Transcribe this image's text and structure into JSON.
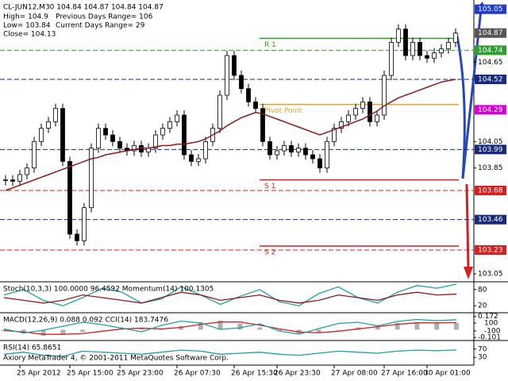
{
  "header": {
    "symbol_line": "CL-JUN12,M30  104.84 104.87 104.84 104.87",
    "info": [
      "High= 104.9",
      "Previous Days Range= 106",
      "Low= 103.84",
      "Current Days Range= 29",
      "Close= 104.13"
    ]
  },
  "footer": "Axiory MetaTrader 4, © 2001-2011 MetaQuotes Software Corp.",
  "chart_data": [
    {
      "type": "candlestick",
      "x": [
        null,
        null,
        "25 Apr 2012",
        null,
        null,
        null,
        null,
        null,
        null,
        "25 Apr 15:00",
        null,
        null,
        null,
        null,
        null,
        null,
        "25 Apr 23:00",
        null,
        null,
        null,
        null,
        null,
        null,
        null,
        "26 Apr 07:30",
        null,
        null,
        null,
        null,
        null,
        null,
        null,
        "26 Apr 15:30",
        null,
        null,
        null,
        null,
        null,
        "26 Apr 23:30",
        null,
        null,
        null,
        null,
        null,
        null,
        null,
        "27 Apr 08:00",
        null,
        null,
        null,
        null,
        null,
        null,
        "27 Apr 16:00",
        null,
        null,
        null,
        null,
        null,
        "30 Apr 01:00",
        null,
        null,
        null,
        null
      ],
      "close": [
        103.76,
        103.75,
        103.8,
        103.85,
        104.05,
        104.15,
        104.2,
        104.3,
        103.9,
        103.35,
        103.3,
        103.55,
        104.0,
        104.15,
        104.1,
        104.05,
        104.0,
        103.98,
        104.02,
        103.97,
        104.0,
        104.1,
        104.15,
        104.2,
        104.25,
        103.95,
        103.9,
        103.92,
        104.05,
        104.15,
        104.4,
        104.7,
        104.55,
        104.45,
        104.35,
        104.3,
        104.05,
        103.95,
        103.98,
        104.02,
        103.97,
        104.0,
        103.95,
        103.92,
        103.85,
        104.05,
        104.15,
        104.2,
        104.25,
        104.3,
        104.35,
        104.2,
        104.25,
        104.55,
        104.8,
        104.9,
        104.7,
        104.8,
        104.7,
        104.68,
        104.72,
        104.75,
        104.8,
        104.87
      ],
      "ma": {
        "color": "#8b1a1a",
        "values": [
          103.68,
          103.7,
          103.72,
          103.74,
          103.76,
          103.78,
          103.8,
          103.82,
          103.84,
          103.86,
          103.88,
          103.9,
          103.92,
          103.93,
          103.95,
          103.96,
          103.97,
          103.98,
          103.99,
          104.0,
          104.0,
          104.01,
          104.02,
          104.02,
          104.03,
          104.03,
          104.04,
          104.05,
          104.07,
          104.1,
          104.13,
          104.17,
          104.2,
          104.23,
          104.25,
          104.27,
          104.26,
          104.24,
          104.22,
          104.2,
          104.18,
          104.16,
          104.14,
          104.12,
          104.1,
          104.12,
          104.14,
          104.16,
          104.18,
          104.2,
          104.22,
          104.25,
          104.28,
          104.32,
          104.35,
          104.38,
          104.4,
          104.42,
          104.44,
          104.46,
          104.48,
          104.5,
          104.51,
          104.52
        ]
      },
      "ylim": [
        102.99,
        105.12
      ],
      "yticks": [
        104.65,
        104.05,
        103.85,
        103.05
      ],
      "levels": [
        {
          "value": 105.05,
          "color": "#1e3cc8",
          "line": false
        },
        {
          "value": 104.87,
          "color": "#555555",
          "line": false
        },
        {
          "value": 104.74,
          "color": "#2e9e2e",
          "line": true
        },
        {
          "value": 104.52,
          "color": "#1a2a7a",
          "line": true
        },
        {
          "value": 104.29,
          "color": "#d400d4",
          "line": false
        },
        {
          "value": 103.99,
          "color": "#1a2a7a",
          "line": true
        },
        {
          "value": 103.68,
          "color": "#d42020",
          "line": true
        },
        {
          "value": 103.46,
          "color": "#1a2a7a",
          "line": true
        },
        {
          "value": 103.23,
          "color": "#d42020",
          "line": true
        }
      ],
      "pivots": [
        {
          "label": "R 1",
          "color": "#2e9e2e",
          "value": 104.83
        },
        {
          "label": "Pivot Point",
          "color": "#e8a020",
          "value": 104.33
        },
        {
          "label": "S 1",
          "color": "#d42020",
          "value": 103.76
        },
        {
          "label": "S 2",
          "color": "#d42020",
          "value": 103.26
        }
      ]
    },
    {
      "type": "line",
      "title": "Stoch(10,3,3) 100.0000 96.4592  Momentum(14) 100.1305",
      "series": [
        {
          "color": "#20a0a0",
          "values": [
            60,
            80,
            40,
            20,
            50,
            85,
            70,
            30,
            45,
            90,
            60,
            25,
            55,
            80,
            35,
            20,
            65,
            90,
            50,
            30,
            70,
            95,
            85,
            100
          ]
        },
        {
          "color": "#8b1a1a",
          "axis": "y2",
          "values": [
            100.0,
            99.9,
            99.8,
            99.9,
            100.1,
            100.0,
            99.9,
            99.8,
            100.0,
            100.2,
            100.1,
            99.9,
            100.0,
            100.1,
            99.9,
            99.8,
            99.9,
            100.1,
            100.0,
            99.9,
            100.1,
            100.2,
            100.1,
            100.1305
          ]
        }
      ],
      "ylim": [
        0,
        100
      ],
      "yticks": [
        80,
        20
      ],
      "y2lim": [
        99.5,
        100.5
      ]
    },
    {
      "type": "macd",
      "title": "MACD(12,26,9) 0.088 0.092  CCI(14) 183.7476",
      "histogram": {
        "color": "#b0b0b0",
        "values": [
          -0.02,
          -0.05,
          -0.08,
          -0.06,
          -0.03,
          0.0,
          0.03,
          0.02,
          0.0,
          0.05,
          0.1,
          0.12,
          0.08,
          0.03,
          -0.02,
          -0.05,
          -0.04,
          0.0,
          0.03,
          0.06,
          0.09,
          0.1,
          0.09,
          0.088
        ]
      },
      "series": [
        {
          "color": "#d42020",
          "values": [
            -0.01,
            -0.03,
            -0.06,
            -0.06,
            -0.05,
            -0.02,
            0.01,
            0.02,
            0.01,
            0.03,
            0.07,
            0.1,
            0.1,
            0.06,
            0.01,
            -0.03,
            -0.04,
            -0.02,
            0.01,
            0.04,
            0.07,
            0.09,
            0.09,
            0.092
          ]
        },
        {
          "color": "#20a0a0",
          "axis": "y2",
          "values": [
            -50,
            -150,
            -80,
            20,
            120,
            60,
            -30,
            -120,
            40,
            150,
            100,
            -60,
            -20,
            80,
            -100,
            -180,
            -40,
            90,
            120,
            30,
            140,
            190,
            160,
            183.7476
          ]
        }
      ],
      "ylim": [
        -0.12,
        0.19
      ],
      "yticks": [
        0.172,
        -0.101
      ],
      "y2lim": [
        -300,
        300
      ],
      "y2ticks": [
        100,
        -100
      ]
    },
    {
      "type": "line",
      "title": "RSI(14) 65.8651",
      "series": [
        {
          "color": "#20a0a0",
          "values": [
            45,
            55,
            40,
            35,
            60,
            55,
            50,
            45,
            55,
            65,
            60,
            45,
            50,
            55,
            45,
            40,
            50,
            60,
            55,
            50,
            60,
            65,
            62,
            65.8651
          ]
        }
      ],
      "ylim": [
        0,
        100
      ],
      "yticks": [
        70,
        30
      ]
    }
  ]
}
